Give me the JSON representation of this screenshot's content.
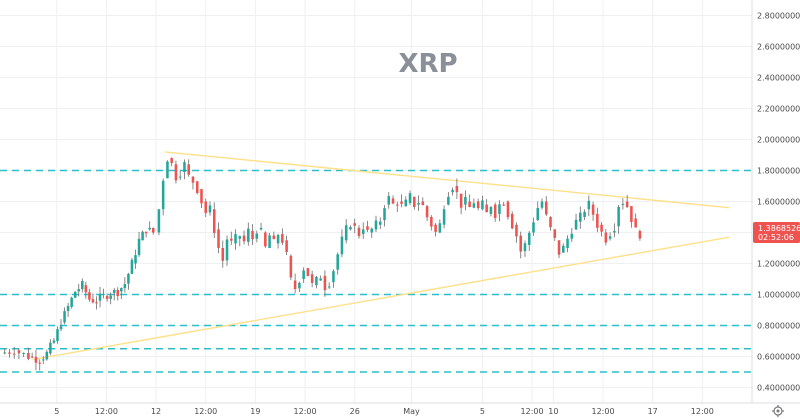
{
  "chart_data": {
    "type": "candlestick",
    "title": "XRP",
    "colors": {
      "up": "#26a69a",
      "down": "#ef5350",
      "wick": "#6b6b6b",
      "level_line": "#2cbfc9",
      "trend_line": "#ffe08a",
      "badge": "#ef5350",
      "grid": "#eef0f3"
    },
    "y_axis": {
      "position": "right",
      "ylim": [
        0.3,
        2.9
      ],
      "ticks": [
        "0.40000000",
        "0.60000000",
        "0.80000000",
        "1.00000000",
        "1.20000000",
        "1.40000000",
        "1.60000000",
        "1.80000000",
        "2.00000000",
        "2.20000000",
        "2.40000000",
        "2.60000000",
        "2.80000000"
      ],
      "tick_values": [
        0.4,
        0.6,
        0.8,
        1.0,
        1.2,
        1.4,
        1.6,
        1.8,
        2.0,
        2.2,
        2.4,
        2.6,
        2.8
      ]
    },
    "x_axis": {
      "ticks": [
        {
          "label": "5",
          "t": 5.0
        },
        {
          "label": "12:00",
          "t": 8.5
        },
        {
          "label": "12",
          "t": 12.0
        },
        {
          "label": "12:00",
          "t": 15.5
        },
        {
          "label": "19",
          "t": 19.0
        },
        {
          "label": "12:00",
          "t": 22.5
        },
        {
          "label": "26",
          "t": 26.0
        },
        {
          "label": "May",
          "t": 30.0
        },
        {
          "label": "5",
          "t": 35.0
        },
        {
          "label": "12:00",
          "t": 38.5
        },
        {
          "label": "10",
          "t": 40.0
        },
        {
          "label": "12:00",
          "t": 43.5
        },
        {
          "label": "17",
          "t": 47.0
        },
        {
          "label": "12:00",
          "t": 50.5
        }
      ],
      "range": [
        1.0,
        54.0
      ]
    },
    "levels": [
      1.8,
      1.0,
      0.8,
      0.65,
      0.5
    ],
    "trend_lines": [
      {
        "from": [
          12.6,
          1.92
        ],
        "to": [
          52.4,
          1.56
        ]
      },
      {
        "from": [
          3.3,
          0.58
        ],
        "to": [
          52.4,
          1.37
        ]
      }
    ],
    "current_price": {
      "value": 1.38685266,
      "label": "1.38685266",
      "countdown": "02:52:06"
    },
    "candles_path": [
      [
        1.0,
        0.62
      ],
      [
        2.0,
        0.64
      ],
      [
        3.0,
        0.6
      ],
      [
        3.8,
        0.58
      ],
      [
        4.3,
        0.62
      ],
      [
        4.8,
        0.7
      ],
      [
        5.3,
        0.82
      ],
      [
        5.8,
        0.92
      ],
      [
        6.3,
        1.02
      ],
      [
        6.8,
        1.06
      ],
      [
        7.3,
        0.97
      ],
      [
        7.8,
        0.96
      ],
      [
        8.3,
        0.99
      ],
      [
        8.8,
        1.01
      ],
      [
        9.3,
        1.02
      ],
      [
        9.8,
        1.07
      ],
      [
        10.3,
        1.2
      ],
      [
        10.8,
        1.35
      ],
      [
        11.3,
        1.42
      ],
      [
        11.8,
        1.4
      ],
      [
        12.2,
        1.55
      ],
      [
        12.5,
        1.75
      ],
      [
        12.8,
        1.88
      ],
      [
        13.1,
        1.84
      ],
      [
        13.4,
        1.76
      ],
      [
        13.7,
        1.79
      ],
      [
        14.0,
        1.84
      ],
      [
        14.3,
        1.76
      ],
      [
        14.6,
        1.73
      ],
      [
        14.9,
        1.68
      ],
      [
        15.2,
        1.6
      ],
      [
        15.5,
        1.53
      ],
      [
        15.8,
        1.55
      ],
      [
        16.1,
        1.42
      ],
      [
        16.4,
        1.3
      ],
      [
        16.7,
        1.22
      ],
      [
        17.0,
        1.36
      ],
      [
        17.3,
        1.33
      ],
      [
        17.6,
        1.36
      ],
      [
        17.9,
        1.38
      ],
      [
        18.2,
        1.34
      ],
      [
        18.5,
        1.41
      ],
      [
        18.8,
        1.36
      ],
      [
        19.1,
        1.42
      ],
      [
        19.4,
        1.4
      ],
      [
        19.7,
        1.3
      ],
      [
        20.0,
        1.38
      ],
      [
        20.3,
        1.33
      ],
      [
        20.6,
        1.39
      ],
      [
        20.9,
        1.35
      ],
      [
        21.2,
        1.25
      ],
      [
        21.5,
        1.09
      ],
      [
        21.8,
        1.04
      ],
      [
        22.1,
        1.1
      ],
      [
        22.4,
        1.17
      ],
      [
        22.7,
        1.13
      ],
      [
        23.0,
        1.06
      ],
      [
        23.3,
        1.09
      ],
      [
        23.6,
        1.12
      ],
      [
        23.9,
        1.05
      ],
      [
        24.2,
        1.08
      ],
      [
        24.5,
        1.16
      ],
      [
        24.8,
        1.26
      ],
      [
        25.1,
        1.35
      ],
      [
        25.4,
        1.42
      ],
      [
        25.7,
        1.46
      ],
      [
        26.0,
        1.43
      ],
      [
        26.3,
        1.39
      ],
      [
        26.6,
        1.44
      ],
      [
        26.9,
        1.4
      ],
      [
        27.2,
        1.42
      ],
      [
        27.5,
        1.45
      ],
      [
        27.8,
        1.48
      ],
      [
        28.1,
        1.58
      ],
      [
        28.4,
        1.62
      ],
      [
        28.7,
        1.58
      ],
      [
        29.0,
        1.6
      ],
      [
        29.3,
        1.57
      ],
      [
        29.6,
        1.59
      ],
      [
        29.9,
        1.63
      ],
      [
        30.2,
        1.58
      ],
      [
        30.5,
        1.6
      ],
      [
        30.8,
        1.57
      ],
      [
        31.1,
        1.5
      ],
      [
        31.4,
        1.45
      ],
      [
        31.7,
        1.4
      ],
      [
        32.0,
        1.45
      ],
      [
        32.3,
        1.58
      ],
      [
        32.6,
        1.66
      ],
      [
        32.9,
        1.7
      ],
      [
        33.2,
        1.65
      ],
      [
        33.5,
        1.58
      ],
      [
        33.8,
        1.6
      ],
      [
        34.1,
        1.56
      ],
      [
        34.4,
        1.6
      ],
      [
        34.7,
        1.55
      ],
      [
        35.0,
        1.58
      ],
      [
        35.3,
        1.52
      ],
      [
        35.6,
        1.58
      ],
      [
        35.9,
        1.52
      ],
      [
        36.2,
        1.58
      ],
      [
        36.5,
        1.6
      ],
      [
        36.8,
        1.52
      ],
      [
        37.1,
        1.45
      ],
      [
        37.4,
        1.38
      ],
      [
        37.7,
        1.28
      ],
      [
        38.0,
        1.32
      ],
      [
        38.3,
        1.4
      ],
      [
        38.6,
        1.48
      ],
      [
        38.9,
        1.56
      ],
      [
        39.2,
        1.6
      ],
      [
        39.5,
        1.5
      ],
      [
        39.8,
        1.42
      ],
      [
        40.1,
        1.35
      ],
      [
        40.4,
        1.27
      ],
      [
        40.7,
        1.3
      ],
      [
        41.0,
        1.36
      ],
      [
        41.3,
        1.42
      ],
      [
        41.6,
        1.47
      ],
      [
        41.9,
        1.5
      ],
      [
        42.2,
        1.55
      ],
      [
        42.5,
        1.58
      ],
      [
        42.8,
        1.52
      ],
      [
        43.1,
        1.45
      ],
      [
        43.4,
        1.4
      ],
      [
        43.7,
        1.36
      ],
      [
        44.0,
        1.4
      ],
      [
        44.3,
        1.44
      ],
      [
        44.6,
        1.58
      ],
      [
        44.9,
        1.6
      ],
      [
        45.2,
        1.57
      ],
      [
        45.5,
        1.49
      ],
      [
        45.8,
        1.41
      ],
      [
        46.1,
        1.39
      ]
    ]
  }
}
